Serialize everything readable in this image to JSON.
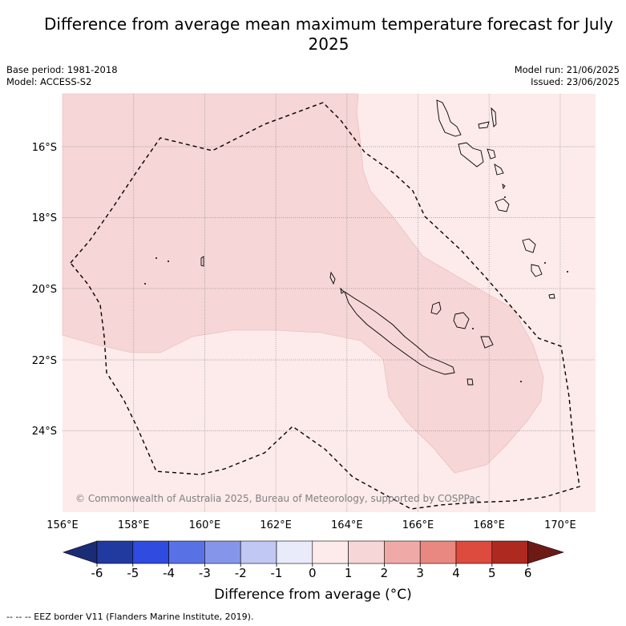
{
  "title": "Difference from average mean maximum temperature forecast for July 2025",
  "meta": {
    "base_period": "Base period: 1981-2018",
    "model": "Model: ACCESS-S2",
    "model_run": "Model run: 21/06/2025",
    "issued": "Issued: 23/06/2025"
  },
  "map": {
    "lon_range": [
      156,
      171
    ],
    "lat_range": [
      -26.5,
      -14.8
    ],
    "lon_ticks": [
      "156°E",
      "158°E",
      "160°E",
      "162°E",
      "164°E",
      "166°E",
      "168°E",
      "170°E"
    ],
    "lat_ticks": [
      "16°S",
      "18°S",
      "20°S",
      "22°S",
      "24°S"
    ],
    "copyright": "© Commonwealth of Australia 2025, Bureau of Meteorology, supported by COSPPac",
    "colors": {
      "anomaly_0_1": "#fcebea",
      "anomaly_1_2": "#f6d6d6",
      "eez_border": "#000000"
    }
  },
  "colorbar": {
    "ticks": [
      "-6",
      "-5",
      "-4",
      "-3",
      "-2",
      "-1",
      "0",
      "1",
      "2",
      "3",
      "4",
      "5",
      "6"
    ],
    "colors": [
      "#213a9f",
      "#2f4be0",
      "#5872e6",
      "#8596ea",
      "#c1c8f4",
      "#e9ebfa",
      "#fcebea",
      "#f6d6d6",
      "#efaaa7",
      "#e98880",
      "#dd4a3e",
      "#ae2a21"
    ],
    "under_color": "#1b2c76",
    "over_color": "#6d1a16",
    "label": "Difference from average (°C)"
  },
  "footnote": "-- -- -- EEZ border V11 (Flanders Marine Institute, 2019)."
}
